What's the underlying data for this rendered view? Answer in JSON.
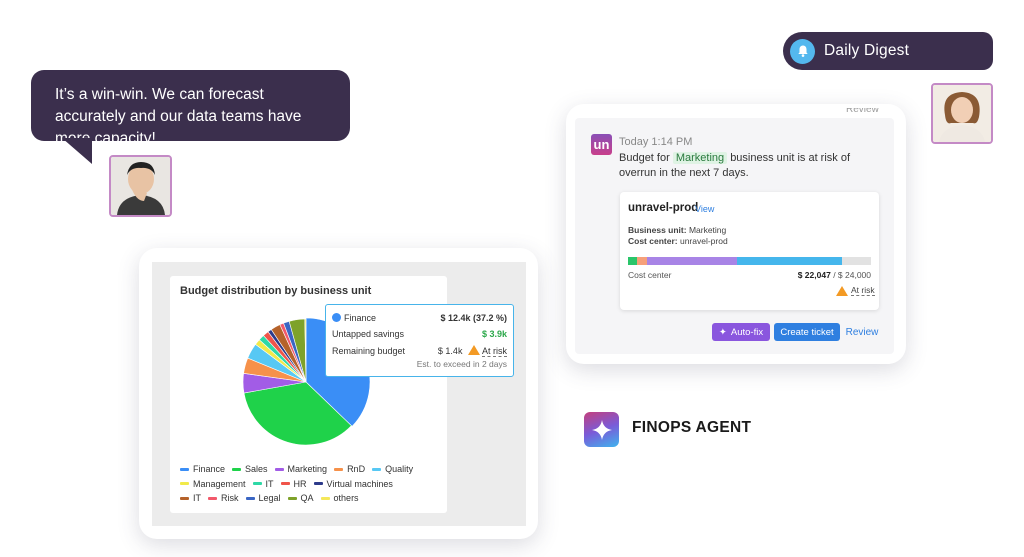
{
  "bubble": {
    "text": "It’s a win-win. We can forecast accurately and our data teams have more capacity!"
  },
  "digest": {
    "label": "Daily Digest"
  },
  "notification": {
    "clipped_top": "Review",
    "logo_letter": "un",
    "time": "Today 1:14 PM",
    "msg_prefix": "Budget for",
    "tag": "Marketing",
    "msg_suffix": "business unit is at risk of overrun in the next 7 days.",
    "card": {
      "title": "unravel-prod",
      "view_link": "View",
      "business_unit_label": "Business unit:",
      "business_unit_value": "Marketing",
      "cost_center_label": "Cost center:",
      "cost_center_value": "unravel-prod",
      "bar_segments": [
        {
          "color": "#2ac56a",
          "fraction": 0.035
        },
        {
          "color": "#f6a07a",
          "fraction": 0.045
        },
        {
          "color": "#a884e6",
          "fraction": 0.37
        },
        {
          "color": "#45b6ec",
          "fraction": 0.43
        },
        {
          "color": "#e2e2e2",
          "fraction": 0.12
        }
      ],
      "cost_label": "Cost center",
      "cost_value": "$ 22,047",
      "cost_total": "/ $ 24,000",
      "at_risk": "At risk"
    },
    "buttons": {
      "autofix": "Auto-fix",
      "ticket": "Create ticket",
      "review": "Review"
    }
  },
  "agent": {
    "label": "FINOPS AGENT"
  },
  "chart_panel": {
    "title": "Budget distribution by business unit",
    "tooltip": {
      "series": "Finance",
      "series_value": "$ 12.4k (37.2 %)",
      "savings_label": "Untapped savings",
      "savings_value": "$ 3.9k",
      "remaining_label": "Remaining budget",
      "remaining_value": "$ 1.4k",
      "remaining_status": "At risk",
      "note": "Est. to exceed in 2 days"
    }
  },
  "chart_data": {
    "type": "pie",
    "title": "Budget distribution by business unit",
    "categories": [
      "Finance",
      "Sales",
      "Marketing",
      "RnD",
      "Quality",
      "Management",
      "IT",
      "HR",
      "Virtual machines",
      "IT",
      "Risk",
      "Legal",
      "QA",
      "others"
    ],
    "values": [
      37.2,
      35.0,
      5.0,
      4.0,
      4.0,
      1.5,
      1.5,
      1.5,
      1.0,
      2.5,
      1.0,
      1.5,
      4.0,
      0.3
    ],
    "colors": [
      "#3a8ef6",
      "#1fd24a",
      "#a25ce6",
      "#f6914a",
      "#57c8f4",
      "#f1ea4a",
      "#2ed8a6",
      "#f0544a",
      "#2d3a8a",
      "#b5622a",
      "#f2596b",
      "#3a66c4",
      "#7ea22a",
      "#f5e85a"
    ],
    "legend": "bottom"
  }
}
